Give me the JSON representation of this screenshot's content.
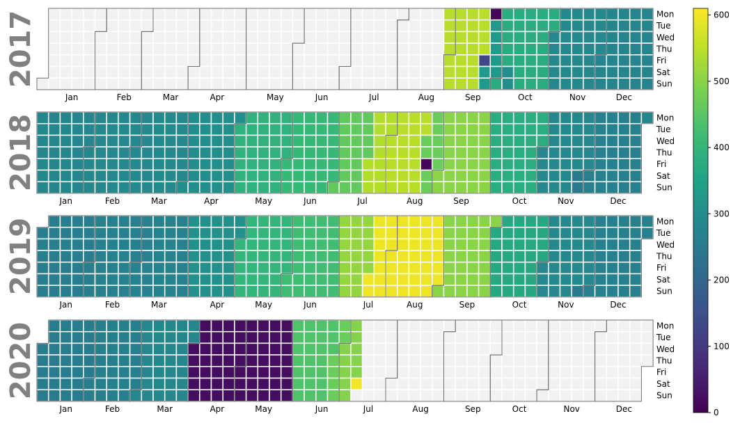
{
  "chart_data": {
    "type": "heatmap",
    "title": "",
    "xlabel": "",
    "ylabel": "",
    "years": [
      2017,
      2018,
      2019,
      2020
    ],
    "weekday_labels": [
      "Mon",
      "Tue",
      "Wed",
      "Thu",
      "Fri",
      "Sat",
      "Sun"
    ],
    "month_labels": [
      "Jan",
      "Feb",
      "Mar",
      "Apr",
      "May",
      "Jun",
      "Jul",
      "Aug",
      "Sep",
      "Oct",
      "Nov",
      "Dec"
    ],
    "colorscale": "viridis",
    "empty_color": "#f2f2f2",
    "colorbar": {
      "range": [
        0,
        610
      ],
      "ticks": [
        0,
        100,
        200,
        300,
        400,
        500,
        600
      ]
    },
    "data_ranges": [
      {
        "year": 2017,
        "start": "2017-08-28",
        "end": "2017-12-31"
      },
      {
        "year": 2018,
        "start": "2018-01-01",
        "end": "2018-12-31"
      },
      {
        "year": 2019,
        "start": "2019-01-01",
        "end": "2019-12-31"
      },
      {
        "year": 2020,
        "start": "2020-01-01",
        "end": "2020-07-11"
      }
    ],
    "monthly_levels": [
      {
        "year": 2017,
        "values": [
          null,
          null,
          null,
          null,
          null,
          null,
          null,
          545,
          545,
          375,
          285,
          275
        ]
      },
      {
        "year": 2018,
        "values": [
          280,
          285,
          290,
          300,
          390,
          410,
          460,
          545,
          500,
          380,
          285,
          265
        ]
      },
      {
        "year": 2019,
        "values": [
          260,
          265,
          270,
          305,
          400,
          420,
          510,
          595,
          500,
          365,
          285,
          265
        ]
      },
      {
        "year": 2020,
        "values": [
          255,
          262,
          280,
          20,
          20,
          440,
          495,
          null,
          null,
          null,
          null,
          null
        ]
      }
    ],
    "segments": [
      {
        "year": 2017,
        "start": "2017-09-22",
        "end": "2017-09-30",
        "value": 330
      },
      {
        "year": 2018,
        "start": "2018-07-20",
        "end": "2018-07-31",
        "value": 540
      },
      {
        "year": 2018,
        "start": "2018-08-22",
        "end": "2018-08-31",
        "value": 470
      },
      {
        "year": 2019,
        "start": "2019-07-20",
        "end": "2019-07-31",
        "value": 595
      },
      {
        "year": 2020,
        "start": "2020-03-01",
        "end": "2020-03-08",
        "value": 285
      },
      {
        "year": 2020,
        "start": "2020-06-25",
        "end": "2020-06-30",
        "value": 470
      }
    ],
    "special_days": [
      {
        "date": "2017-09-25",
        "value": 10
      },
      {
        "date": "2017-09-22",
        "value": 130
      },
      {
        "date": "2017-10-07",
        "value": 300
      },
      {
        "date": "2017-10-08",
        "value": 300
      },
      {
        "date": "2018-08-24",
        "value": 10
      },
      {
        "date": "2018-11-24",
        "value": 250
      },
      {
        "date": "2018-11-25",
        "value": 250
      },
      {
        "date": "2018-12-31",
        "value": 280
      },
      {
        "date": "2019-11-24",
        "value": 250
      },
      {
        "date": "2020-07-11",
        "value": 600
      }
    ]
  }
}
